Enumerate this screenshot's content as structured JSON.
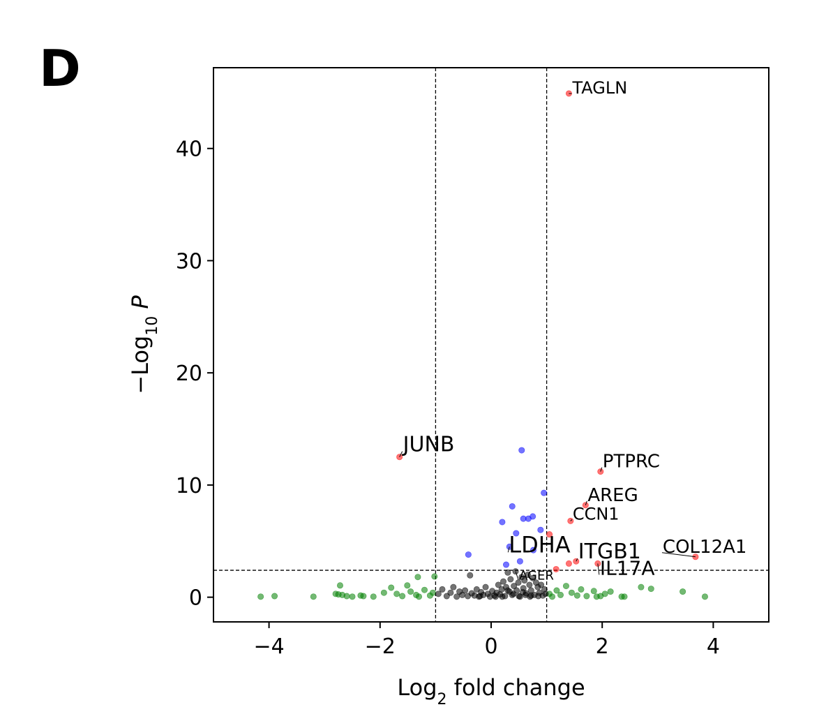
{
  "panel_letter": "D",
  "chart_data": {
    "type": "scatter",
    "title": "",
    "xlabel": "Log2 fold change",
    "ylabel": "−Log10 P",
    "xlim": [
      -5,
      5
    ],
    "ylim": [
      -2.2,
      47.2
    ],
    "xticks": [
      -4,
      -2,
      0,
      2,
      4
    ],
    "xtick_labels": [
      "−4",
      "−2",
      "0",
      "2",
      "4"
    ],
    "yticks": [
      0,
      10,
      20,
      30,
      40
    ],
    "ytick_labels": [
      "0",
      "10",
      "20",
      "30",
      "40"
    ],
    "grid": false,
    "thresholds": {
      "log2fc": [
        -1,
        1
      ],
      "neg_log10_p": 2.4
    },
    "colors": {
      "significant": "#ff0000",
      "p_only": "#0000ff",
      "fc_only": "#008000",
      "not_significant": "#000000"
    },
    "series": [
      {
        "category": "significant",
        "points": [
          {
            "x": 1.4,
            "y": 44.9
          },
          {
            "x": -1.65,
            "y": 12.5
          },
          {
            "x": 1.97,
            "y": 11.2
          },
          {
            "x": 1.7,
            "y": 8.2
          },
          {
            "x": 1.43,
            "y": 6.8
          },
          {
            "x": 1.05,
            "y": 5.6
          },
          {
            "x": 3.68,
            "y": 3.6
          },
          {
            "x": 1.53,
            "y": 3.2
          },
          {
            "x": 1.4,
            "y": 3.0
          },
          {
            "x": 1.92,
            "y": 3.0
          },
          {
            "x": 1.17,
            "y": 2.5
          }
        ]
      },
      {
        "category": "p_only",
        "points": [
          {
            "x": 0.55,
            "y": 13.1
          },
          {
            "x": 0.95,
            "y": 9.3
          },
          {
            "x": 0.38,
            "y": 8.1
          },
          {
            "x": 0.58,
            "y": 7.0
          },
          {
            "x": 0.67,
            "y": 7.0
          },
          {
            "x": 0.75,
            "y": 7.2
          },
          {
            "x": 0.2,
            "y": 6.7
          },
          {
            "x": 0.45,
            "y": 5.7
          },
          {
            "x": 0.89,
            "y": 6.0
          },
          {
            "x": 0.33,
            "y": 4.5
          },
          {
            "x": 0.76,
            "y": 4.2
          },
          {
            "x": -0.41,
            "y": 3.8
          },
          {
            "x": 0.52,
            "y": 3.2
          },
          {
            "x": 0.27,
            "y": 2.9
          }
        ]
      },
      {
        "category": "fc_only",
        "points": [
          {
            "x": -4.15,
            "y": 0.05
          },
          {
            "x": -3.9,
            "y": 0.1
          },
          {
            "x": -3.2,
            "y": 0.05
          },
          {
            "x": -2.8,
            "y": 0.3
          },
          {
            "x": -2.75,
            "y": 0.25
          },
          {
            "x": -2.72,
            "y": 1.05
          },
          {
            "x": -2.68,
            "y": 0.2
          },
          {
            "x": -2.6,
            "y": 0.1
          },
          {
            "x": -2.5,
            "y": 0.05
          },
          {
            "x": -2.35,
            "y": 0.15
          },
          {
            "x": -2.3,
            "y": 0.1
          },
          {
            "x": -2.12,
            "y": 0.05
          },
          {
            "x": -1.93,
            "y": 0.4
          },
          {
            "x": -1.8,
            "y": 0.85
          },
          {
            "x": -1.7,
            "y": 0.3
          },
          {
            "x": -1.6,
            "y": 0.1
          },
          {
            "x": -1.51,
            "y": 1.05
          },
          {
            "x": -1.45,
            "y": 0.5
          },
          {
            "x": -1.35,
            "y": 0.2
          },
          {
            "x": -1.3,
            "y": 0.05
          },
          {
            "x": -1.2,
            "y": 0.65
          },
          {
            "x": -1.32,
            "y": 1.8
          },
          {
            "x": -1.1,
            "y": 0.15
          },
          {
            "x": -1.05,
            "y": 0.4
          },
          {
            "x": -1.02,
            "y": 1.85
          },
          {
            "x": 1.05,
            "y": 0.3
          },
          {
            "x": 1.1,
            "y": 0.05
          },
          {
            "x": 1.18,
            "y": 0.6
          },
          {
            "x": 1.25,
            "y": 0.2
          },
          {
            "x": 1.35,
            "y": 1.0
          },
          {
            "x": 1.45,
            "y": 0.4
          },
          {
            "x": 1.55,
            "y": 0.15
          },
          {
            "x": 1.62,
            "y": 0.7
          },
          {
            "x": 1.72,
            "y": 0.1
          },
          {
            "x": 1.85,
            "y": 0.55
          },
          {
            "x": 1.9,
            "y": 0.05
          },
          {
            "x": 1.97,
            "y": 0.1
          },
          {
            "x": 2.05,
            "y": 0.3
          },
          {
            "x": 2.15,
            "y": 0.5
          },
          {
            "x": 2.35,
            "y": 0.05
          },
          {
            "x": 2.4,
            "y": 0.05
          },
          {
            "x": 2.7,
            "y": 0.9
          },
          {
            "x": 2.88,
            "y": 0.75
          },
          {
            "x": 3.45,
            "y": 0.5
          },
          {
            "x": 3.85,
            "y": 0.05
          }
        ]
      },
      {
        "category": "not_significant",
        "points": [
          {
            "x": -0.95,
            "y": 0.3
          },
          {
            "x": -0.88,
            "y": 0.7
          },
          {
            "x": -0.8,
            "y": 0.1
          },
          {
            "x": -0.73,
            "y": 0.4
          },
          {
            "x": -0.68,
            "y": 0.9
          },
          {
            "x": -0.62,
            "y": 0.05
          },
          {
            "x": -0.57,
            "y": 0.5
          },
          {
            "x": -0.52,
            "y": 0.2
          },
          {
            "x": -0.47,
            "y": 0.6
          },
          {
            "x": -0.42,
            "y": 0.1
          },
          {
            "x": -0.38,
            "y": 1.95
          },
          {
            "x": -0.35,
            "y": 0.35
          },
          {
            "x": -0.3,
            "y": 0.15
          },
          {
            "x": -0.26,
            "y": 0.7
          },
          {
            "x": -0.22,
            "y": 0.05
          },
          {
            "x": -0.18,
            "y": 0.45
          },
          {
            "x": -0.14,
            "y": 0.2
          },
          {
            "x": -0.1,
            "y": 0.9
          },
          {
            "x": -0.06,
            "y": 0.3
          },
          {
            "x": -0.02,
            "y": 0.05
          },
          {
            "x": 0.02,
            "y": 0.55
          },
          {
            "x": 0.06,
            "y": 0.15
          },
          {
            "x": 0.1,
            "y": 0.4
          },
          {
            "x": 0.13,
            "y": 1.1
          },
          {
            "x": 0.16,
            "y": 0.25
          },
          {
            "x": 0.19,
            "y": 0.7
          },
          {
            "x": 0.22,
            "y": 1.4
          },
          {
            "x": 0.25,
            "y": 0.1
          },
          {
            "x": 0.27,
            "y": 0.9
          },
          {
            "x": 0.3,
            "y": 2.2
          },
          {
            "x": 0.33,
            "y": 0.5
          },
          {
            "x": 0.35,
            "y": 1.6
          },
          {
            "x": 0.38,
            "y": 0.2
          },
          {
            "x": 0.41,
            "y": 1.0
          },
          {
            "x": 0.44,
            "y": 2.3
          },
          {
            "x": 0.46,
            "y": 0.6
          },
          {
            "x": 0.49,
            "y": 1.3
          },
          {
            "x": 0.52,
            "y": 0.05
          },
          {
            "x": 0.55,
            "y": 1.8
          },
          {
            "x": 0.58,
            "y": 0.8
          },
          {
            "x": 0.6,
            "y": 1.5
          },
          {
            "x": 0.63,
            "y": 0.35
          },
          {
            "x": 0.66,
            "y": 2.0
          },
          {
            "x": 0.69,
            "y": 1.1
          },
          {
            "x": 0.72,
            "y": 0.6
          },
          {
            "x": 0.75,
            "y": 1.7
          },
          {
            "x": 0.78,
            "y": 0.2
          },
          {
            "x": 0.81,
            "y": 1.3
          },
          {
            "x": 0.84,
            "y": 0.9
          },
          {
            "x": 0.87,
            "y": 0.4
          },
          {
            "x": 0.9,
            "y": 1.1
          },
          {
            "x": 0.93,
            "y": 0.15
          },
          {
            "x": 0.96,
            "y": 0.7
          },
          {
            "x": 0.98,
            "y": 0.3
          },
          {
            "x": 0.2,
            "y": 0.05
          },
          {
            "x": 0.5,
            "y": 0.1
          },
          {
            "x": 0.7,
            "y": 0.05
          },
          {
            "x": -0.2,
            "y": 0.1
          },
          {
            "x": 0.4,
            "y": 0.3
          },
          {
            "x": 0.62,
            "y": 0.2
          },
          {
            "x": 0.85,
            "y": 0.1
          },
          {
            "x": 0.08,
            "y": 0.05
          },
          {
            "x": 0.3,
            "y": 0.6
          },
          {
            "x": 0.57,
            "y": 0.45
          },
          {
            "x": 0.72,
            "y": 0.15
          }
        ]
      }
    ],
    "labels": [
      {
        "text": "TAGLN",
        "x": 1.4,
        "y": 44.9,
        "size": 24,
        "dx": 4,
        "dy": 0
      },
      {
        "text": "JUNB",
        "x": -1.65,
        "y": 12.5,
        "size": 30,
        "dx": 4,
        "dy": -8
      },
      {
        "text": "PTPRC",
        "x": 1.97,
        "y": 11.2,
        "size": 26,
        "dx": 2,
        "dy": -6
      },
      {
        "text": "AREG",
        "x": 1.7,
        "y": 8.2,
        "size": 26,
        "dx": 2,
        "dy": -6
      },
      {
        "text": "CCN1",
        "x": 1.43,
        "y": 6.8,
        "size": 24,
        "dx": 2,
        "dy": -2
      },
      {
        "text": "COL12A1",
        "x": 3.68,
        "y": 3.6,
        "size": 26,
        "dx": -48,
        "dy": -6
      },
      {
        "text": "LDHA",
        "x": 0.33,
        "y": 4.5,
        "size": 32,
        "dx": -2,
        "dy": 8
      },
      {
        "text": "ITGB1",
        "x": 1.53,
        "y": 3.2,
        "size": 30,
        "dx": 2,
        "dy": -4
      },
      {
        "text": "IL17A",
        "x": 1.92,
        "y": 3.0,
        "size": 28,
        "dx": 2,
        "dy": 16
      },
      {
        "text": "AGER",
        "x": 0.44,
        "y": 2.3,
        "size": 18,
        "dx": 4,
        "dy": 12
      }
    ]
  }
}
